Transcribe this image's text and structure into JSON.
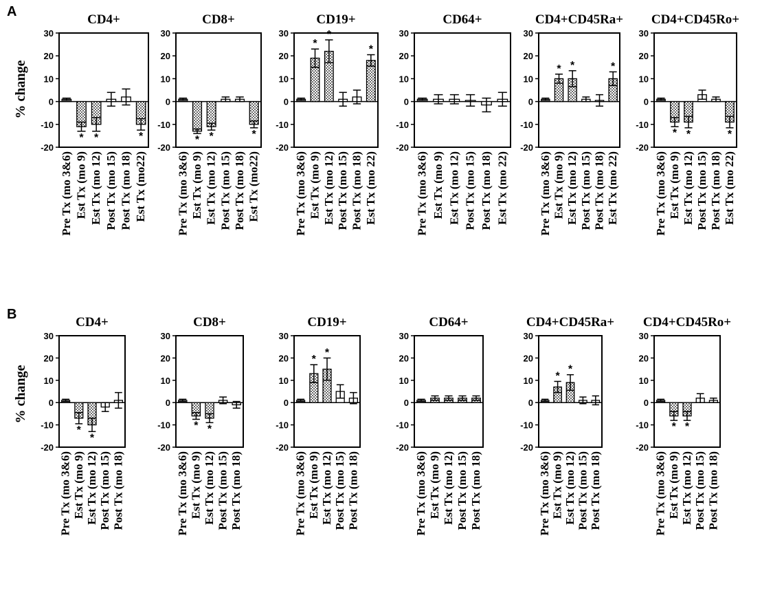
{
  "figure": {
    "panels": [
      {
        "letter": "A",
        "ylabel": "% change"
      },
      {
        "letter": "B",
        "ylabel": "% change"
      }
    ]
  },
  "chart_data": [
    {
      "panel": "A",
      "type": "bar",
      "title": "CD4+",
      "ylabel": "% change",
      "ylim": [
        -20,
        30
      ],
      "yticks": [
        30,
        20,
        10,
        0,
        -10,
        -20
      ],
      "categories": [
        "Pre Tx (mo 3&6)",
        "Est Tx (mo 9)",
        "Est Tx (mo 12)",
        "Post Tx (mo 15)",
        "Post Tx (mo 18)",
        "Est Tx (mo22)"
      ],
      "values": [
        1,
        -11,
        -10,
        1,
        2,
        -10
      ],
      "errors": [
        0.5,
        2,
        3,
        3,
        3.5,
        2.5
      ],
      "dotted": [
        false,
        true,
        true,
        false,
        false,
        true
      ],
      "significant": [
        false,
        true,
        true,
        false,
        false,
        true
      ]
    },
    {
      "panel": "A",
      "type": "bar",
      "title": "CD8+",
      "ylabel": "% change",
      "ylim": [
        -20,
        30
      ],
      "yticks": [
        30,
        20,
        10,
        0,
        -10,
        -20
      ],
      "categories": [
        "Pre Tx (mo 3&6)",
        "Est Tx (mo 9)",
        "Est Tx (mo 12)",
        "Post Tx (mo 15)",
        "Post Tx (mo 18)",
        "Est Tx (mo22)"
      ],
      "values": [
        1,
        -13,
        -11,
        1,
        1,
        -10
      ],
      "errors": [
        0.5,
        1,
        1.5,
        1,
        1,
        1.5
      ],
      "dotted": [
        false,
        true,
        true,
        false,
        false,
        true
      ],
      "significant": [
        false,
        true,
        true,
        false,
        false,
        true
      ]
    },
    {
      "panel": "A",
      "type": "bar",
      "title": "CD19+",
      "ylabel": "% change",
      "ylim": [
        -20,
        30
      ],
      "yticks": [
        30,
        20,
        10,
        0,
        -10,
        -20
      ],
      "categories": [
        "Pre Tx (mo 3&6)",
        "Est Tx (mo 9)",
        "Est Tx (mo 12)",
        "Post Tx (mo 15)",
        "Post Tx (mo 18)",
        "Est Tx (mo 22)"
      ],
      "values": [
        1,
        19,
        22,
        1,
        2,
        18
      ],
      "errors": [
        0.5,
        4,
        5,
        3,
        3,
        2.5
      ],
      "dotted": [
        false,
        true,
        true,
        false,
        false,
        true
      ],
      "significant": [
        false,
        true,
        true,
        false,
        false,
        true
      ]
    },
    {
      "panel": "A",
      "type": "bar",
      "title": "CD64+",
      "ylabel": "% change",
      "ylim": [
        -20,
        30
      ],
      "yticks": [
        30,
        20,
        10,
        0,
        -10,
        -20
      ],
      "categories": [
        "Pre Tx (mo 3&6)",
        "Est Tx (mo 9)",
        "Est Tx (mo 12)",
        "Post Tx (mo 15)",
        "Post Tx (mo 18)",
        "Est Tx (mo 22)"
      ],
      "values": [
        1,
        1,
        1,
        0.5,
        -1.5,
        1
      ],
      "errors": [
        0.5,
        2,
        2,
        2.5,
        3,
        3
      ],
      "dotted": [
        false,
        false,
        false,
        false,
        false,
        false
      ],
      "significant": [
        false,
        false,
        false,
        false,
        false,
        false
      ]
    },
    {
      "panel": "A",
      "type": "bar",
      "title": "CD4+CD45Ra+",
      "ylabel": "% change",
      "ylim": [
        -20,
        30
      ],
      "yticks": [
        30,
        20,
        10,
        0,
        -10,
        -20
      ],
      "categories": [
        "Pre Tx (mo 3&6)",
        "Est Tx (mo 9)",
        "Est Tx (mo 12)",
        "Post Tx (mo 15)",
        "Post Tx (mo 18)",
        "Est Tx (mo 22)"
      ],
      "values": [
        1,
        10,
        10,
        1,
        0.5,
        10
      ],
      "errors": [
        0.5,
        2,
        3.5,
        1,
        2.5,
        3
      ],
      "dotted": [
        false,
        true,
        true,
        false,
        false,
        true
      ],
      "significant": [
        false,
        true,
        true,
        false,
        false,
        true
      ]
    },
    {
      "panel": "A",
      "type": "bar",
      "title": "CD4+CD45Ro+",
      "ylabel": "% change",
      "ylim": [
        -20,
        30
      ],
      "yticks": [
        30,
        20,
        10,
        0,
        -10,
        -20
      ],
      "categories": [
        "Pre Tx (mo 3&6)",
        "Est Tx (mo 9)",
        "Est Tx (mo 12)",
        "Post Tx (mo 15)",
        "Post Tx (mo 18)",
        "Est Tx (mo 22)"
      ],
      "values": [
        1,
        -9,
        -9,
        3,
        1,
        -9
      ],
      "errors": [
        0.5,
        2,
        2.5,
        2,
        1,
        2.5
      ],
      "dotted": [
        false,
        true,
        true,
        false,
        false,
        true
      ],
      "significant": [
        false,
        true,
        true,
        false,
        false,
        true
      ]
    },
    {
      "panel": "B",
      "type": "bar",
      "title": "CD4+",
      "ylabel": "% change",
      "ylim": [
        -20,
        30
      ],
      "yticks": [
        30,
        20,
        10,
        0,
        -10,
        -20
      ],
      "categories": [
        "Pre Tx (mo 3&6)",
        "Est Tx (mo 9)",
        "Est Tx (mo 12)",
        "Post Tx (mo 15)",
        "Post Tx (mo 18)"
      ],
      "values": [
        1,
        -7,
        -10,
        -2,
        1
      ],
      "errors": [
        0.5,
        2.5,
        3,
        2,
        3.5
      ],
      "dotted": [
        false,
        true,
        true,
        false,
        false
      ],
      "significant": [
        false,
        true,
        true,
        false,
        false
      ]
    },
    {
      "panel": "B",
      "type": "bar",
      "title": "CD8+",
      "ylabel": "% change",
      "ylim": [
        -20,
        30
      ],
      "yticks": [
        30,
        20,
        10,
        0,
        -10,
        -20
      ],
      "categories": [
        "Pre Tx (mo 3&6)",
        "Est Tx (mo 9)",
        "Est Tx (mo 12)",
        "Post Tx (mo 15)",
        "Post Tx (mo 18)"
      ],
      "values": [
        1,
        -6,
        -7,
        1,
        -1
      ],
      "errors": [
        0.5,
        1.5,
        2,
        1.5,
        1.5
      ],
      "dotted": [
        false,
        true,
        true,
        false,
        false
      ],
      "significant": [
        false,
        true,
        true,
        false,
        false
      ]
    },
    {
      "panel": "B",
      "type": "bar",
      "title": "CD19+",
      "ylabel": "% change",
      "ylim": [
        -20,
        30
      ],
      "yticks": [
        30,
        20,
        10,
        0,
        -10,
        -20
      ],
      "categories": [
        "Pre Tx (mo 3&6)",
        "Est Tx (mo 9)",
        "Est Tx (mo 12)",
        "Post Tx (mo 15)",
        "Post Tx (mo 18)"
      ],
      "values": [
        1,
        13,
        15,
        5,
        2
      ],
      "errors": [
        0.5,
        4,
        5,
        3,
        2.5
      ],
      "dotted": [
        false,
        true,
        true,
        false,
        false
      ],
      "significant": [
        false,
        true,
        true,
        false,
        false
      ]
    },
    {
      "panel": "B",
      "type": "bar",
      "title": "CD64+",
      "ylabel": "% change",
      "ylim": [
        -20,
        30
      ],
      "yticks": [
        30,
        20,
        10,
        0,
        -10,
        -20
      ],
      "categories": [
        "Pre Tx (mo 3&6)",
        "Est Tx (mo 9)",
        "Est Tx (mo 12)",
        "Post Tx (mo 15)",
        "Post Tx (mo 18)"
      ],
      "values": [
        1,
        2,
        2,
        2,
        2
      ],
      "errors": [
        0.5,
        1,
        1,
        1,
        1
      ],
      "dotted": [
        false,
        true,
        true,
        true,
        true
      ],
      "significant": [
        false,
        false,
        false,
        false,
        false
      ]
    },
    {
      "panel": "B",
      "type": "bar",
      "title": "CD4+CD45Ra+",
      "ylabel": "% change",
      "ylim": [
        -20,
        30
      ],
      "yticks": [
        30,
        20,
        10,
        0,
        -10,
        -20
      ],
      "categories": [
        "Pre Tx (mo 3&6)",
        "Est Tx (mo 9)",
        "Est Tx (mo 12)",
        "Post Tx (mo 15)",
        "Post Tx (mo 18)"
      ],
      "values": [
        1,
        7,
        9,
        1,
        1
      ],
      "errors": [
        0.5,
        2.5,
        3.5,
        1.5,
        2
      ],
      "dotted": [
        false,
        true,
        true,
        false,
        false
      ],
      "significant": [
        false,
        true,
        true,
        false,
        false
      ]
    },
    {
      "panel": "B",
      "type": "bar",
      "title": "CD4+CD45Ro+",
      "ylabel": "% change",
      "ylim": [
        -20,
        30
      ],
      "yticks": [
        30,
        20,
        10,
        0,
        -10,
        -20
      ],
      "categories": [
        "Pre Tx (mo 3&6)",
        "Est Tx (mo 9)",
        "Est Tx (mo 12)",
        "Post Tx (mo 15)",
        "Post Tx (mo 18)"
      ],
      "values": [
        1,
        -6,
        -6,
        2,
        1
      ],
      "errors": [
        0.5,
        2,
        2,
        2,
        1
      ],
      "dotted": [
        false,
        true,
        true,
        false,
        false
      ],
      "significant": [
        false,
        true,
        true,
        false,
        false
      ]
    }
  ]
}
